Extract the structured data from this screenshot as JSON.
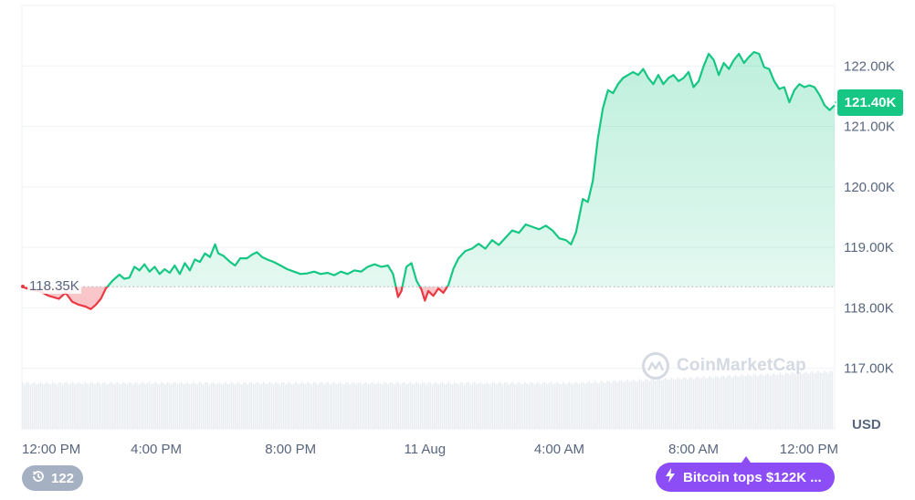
{
  "chart_data": {
    "type": "area",
    "currency": "USD",
    "y_ticks": [
      "117.00K",
      "118.00K",
      "119.00K",
      "120.00K",
      "121.00K",
      "122.00K"
    ],
    "y_tick_values": [
      117000,
      118000,
      119000,
      120000,
      121000,
      122000
    ],
    "ylim": [
      116000,
      123000
    ],
    "x_ticks": [
      "12:00 PM",
      "4:00 PM",
      "8:00 PM",
      "11 Aug",
      "4:00 AM",
      "8:00 AM",
      "12:00 PM"
    ],
    "x_tick_hours": [
      0,
      4,
      8,
      12,
      16,
      20,
      24
    ],
    "reference_price": 118350,
    "reference_label": "118.35K",
    "current_price": 121400,
    "current_label": "121.40K",
    "up_color": "#16c784",
    "down_color": "#ea3943",
    "price_series": [
      [
        0.0,
        118350
      ],
      [
        0.25,
        118300
      ],
      [
        0.5,
        118280
      ],
      [
        0.8,
        118200
      ],
      [
        1.1,
        118150
      ],
      [
        1.3,
        118250
      ],
      [
        1.5,
        118100
      ],
      [
        1.7,
        118050
      ],
      [
        1.9,
        118020
      ],
      [
        2.05,
        117980
      ],
      [
        2.2,
        118050
      ],
      [
        2.35,
        118150
      ],
      [
        2.5,
        118320
      ],
      [
        2.7,
        118450
      ],
      [
        2.9,
        118550
      ],
      [
        3.05,
        118480
      ],
      [
        3.2,
        118500
      ],
      [
        3.35,
        118680
      ],
      [
        3.5,
        118620
      ],
      [
        3.65,
        118720
      ],
      [
        3.8,
        118600
      ],
      [
        3.95,
        118680
      ],
      [
        4.1,
        118560
      ],
      [
        4.25,
        118640
      ],
      [
        4.4,
        118580
      ],
      [
        4.55,
        118700
      ],
      [
        4.7,
        118560
      ],
      [
        4.85,
        118740
      ],
      [
        5.0,
        118620
      ],
      [
        5.15,
        118800
      ],
      [
        5.3,
        118760
      ],
      [
        5.45,
        118900
      ],
      [
        5.6,
        118840
      ],
      [
        5.75,
        119050
      ],
      [
        5.85,
        118900
      ],
      [
        6.0,
        118860
      ],
      [
        6.2,
        118760
      ],
      [
        6.35,
        118700
      ],
      [
        6.5,
        118820
      ],
      [
        6.7,
        118820
      ],
      [
        6.85,
        118880
      ],
      [
        7.0,
        118920
      ],
      [
        7.15,
        118840
      ],
      [
        7.3,
        118800
      ],
      [
        7.5,
        118760
      ],
      [
        7.7,
        118700
      ],
      [
        7.9,
        118640
      ],
      [
        8.1,
        118600
      ],
      [
        8.3,
        118560
      ],
      [
        8.5,
        118570
      ],
      [
        8.7,
        118600
      ],
      [
        8.9,
        118560
      ],
      [
        9.1,
        118580
      ],
      [
        9.3,
        118540
      ],
      [
        9.5,
        118600
      ],
      [
        9.7,
        118560
      ],
      [
        9.9,
        118620
      ],
      [
        10.1,
        118600
      ],
      [
        10.3,
        118680
      ],
      [
        10.5,
        118720
      ],
      [
        10.7,
        118680
      ],
      [
        10.9,
        118700
      ],
      [
        11.05,
        118560
      ],
      [
        11.2,
        118180
      ],
      [
        11.3,
        118280
      ],
      [
        11.45,
        118680
      ],
      [
        11.6,
        118740
      ],
      [
        11.75,
        118450
      ],
      [
        11.9,
        118300
      ],
      [
        12.0,
        118120
      ],
      [
        12.1,
        118280
      ],
      [
        12.25,
        118200
      ],
      [
        12.4,
        118320
      ],
      [
        12.55,
        118250
      ],
      [
        12.7,
        118380
      ],
      [
        12.85,
        118650
      ],
      [
        13.0,
        118820
      ],
      [
        13.2,
        118940
      ],
      [
        13.4,
        118980
      ],
      [
        13.6,
        119060
      ],
      [
        13.8,
        118980
      ],
      [
        14.0,
        119120
      ],
      [
        14.2,
        119040
      ],
      [
        14.4,
        119160
      ],
      [
        14.6,
        119280
      ],
      [
        14.8,
        119240
      ],
      [
        15.0,
        119380
      ],
      [
        15.2,
        119340
      ],
      [
        15.4,
        119300
      ],
      [
        15.6,
        119360
      ],
      [
        15.8,
        119280
      ],
      [
        16.0,
        119150
      ],
      [
        16.2,
        119120
      ],
      [
        16.35,
        119050
      ],
      [
        16.5,
        119250
      ],
      [
        16.7,
        119800
      ],
      [
        16.85,
        119750
      ],
      [
        17.0,
        120100
      ],
      [
        17.15,
        120800
      ],
      [
        17.3,
        121300
      ],
      [
        17.45,
        121600
      ],
      [
        17.6,
        121550
      ],
      [
        17.75,
        121700
      ],
      [
        17.9,
        121800
      ],
      [
        18.05,
        121850
      ],
      [
        18.2,
        121900
      ],
      [
        18.35,
        121850
      ],
      [
        18.5,
        121950
      ],
      [
        18.65,
        121800
      ],
      [
        18.8,
        121700
      ],
      [
        18.95,
        121850
      ],
      [
        19.1,
        121700
      ],
      [
        19.25,
        121800
      ],
      [
        19.4,
        121850
      ],
      [
        19.55,
        121750
      ],
      [
        19.7,
        121800
      ],
      [
        19.85,
        121900
      ],
      [
        20.0,
        121650
      ],
      [
        20.15,
        121750
      ],
      [
        20.3,
        122000
      ],
      [
        20.45,
        122200
      ],
      [
        20.6,
        122100
      ],
      [
        20.75,
        121850
      ],
      [
        20.9,
        122050
      ],
      [
        21.05,
        121950
      ],
      [
        21.2,
        122100
      ],
      [
        21.35,
        122200
      ],
      [
        21.5,
        122050
      ],
      [
        21.65,
        122150
      ],
      [
        21.8,
        122230
      ],
      [
        21.95,
        122200
      ],
      [
        22.1,
        121980
      ],
      [
        22.25,
        121950
      ],
      [
        22.4,
        121750
      ],
      [
        22.55,
        121620
      ],
      [
        22.7,
        121650
      ],
      [
        22.85,
        121400
      ],
      [
        23.0,
        121600
      ],
      [
        23.15,
        121700
      ],
      [
        23.3,
        121650
      ],
      [
        23.45,
        121680
      ],
      [
        23.6,
        121650
      ],
      [
        23.75,
        121520
      ],
      [
        23.9,
        121350
      ],
      [
        24.05,
        121270
      ],
      [
        24.2,
        121350
      ]
    ]
  },
  "ui": {
    "unit_label": "USD",
    "watermark": "CoinMarketCap",
    "events_count": "122",
    "news_text": "Bitcoin tops $122K ...",
    "events_icon": "history-clock-icon",
    "news_icon": "lightning-bolt-icon"
  }
}
